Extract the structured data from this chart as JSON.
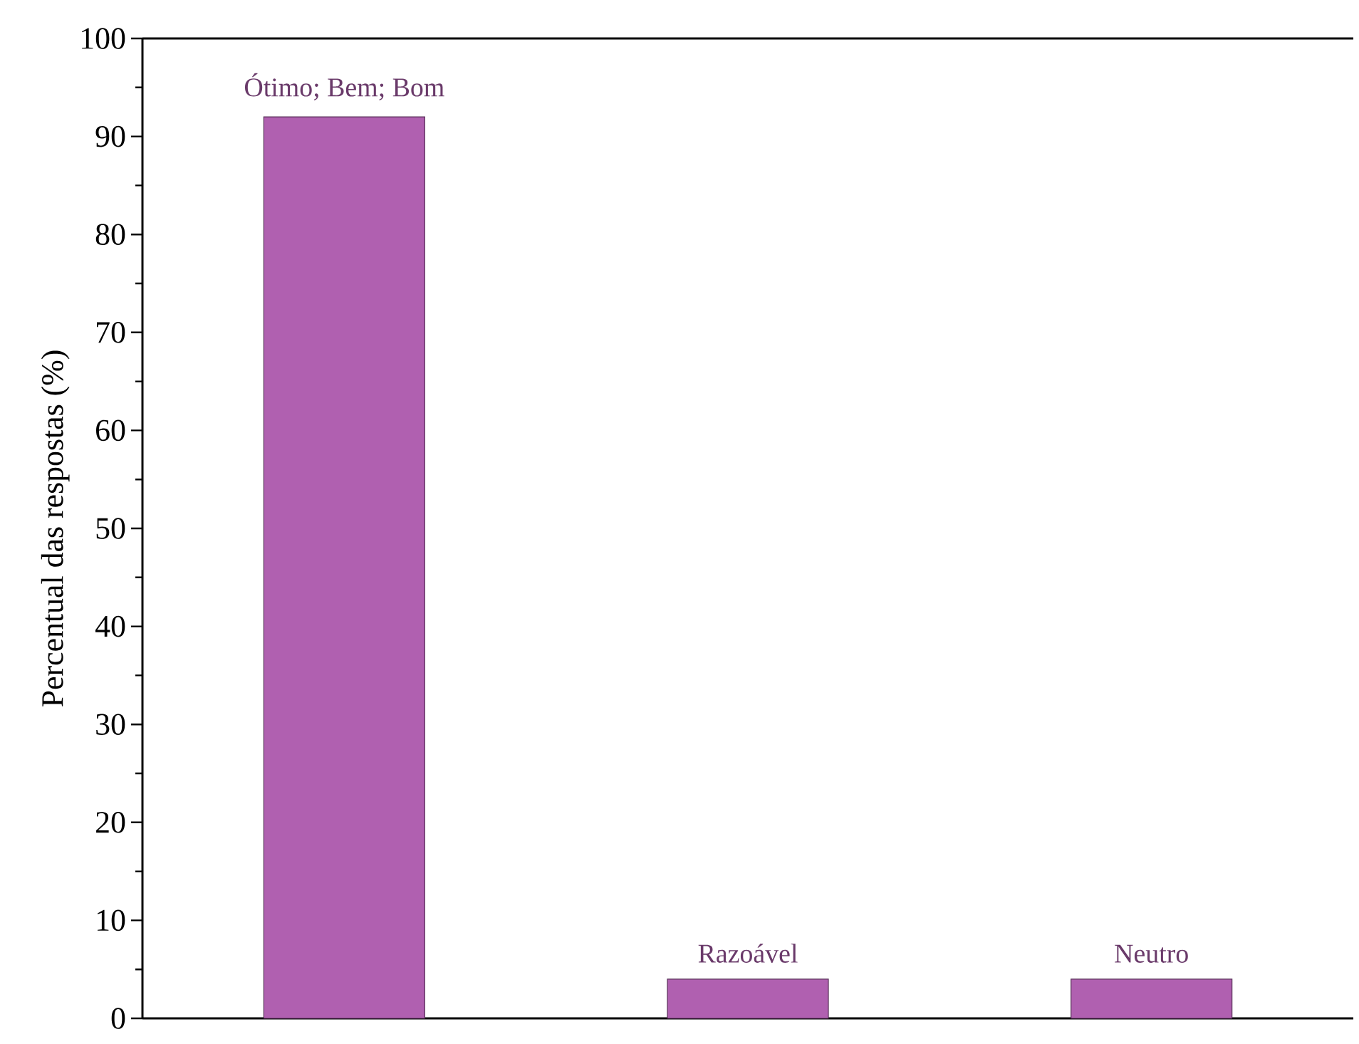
{
  "chart_data": {
    "type": "bar",
    "ylabel": "Percentual das respostas (%)",
    "categories": [
      "Ótimo; Bem; Bom",
      "Razoável",
      "Neutro"
    ],
    "values": [
      92,
      4,
      4
    ],
    "color": "#b060b0",
    "ylim": [
      0,
      100
    ],
    "yticks": [
      0,
      10,
      20,
      30,
      40,
      50,
      60,
      70,
      80,
      90,
      100
    ],
    "tick_labels": "y"
  }
}
